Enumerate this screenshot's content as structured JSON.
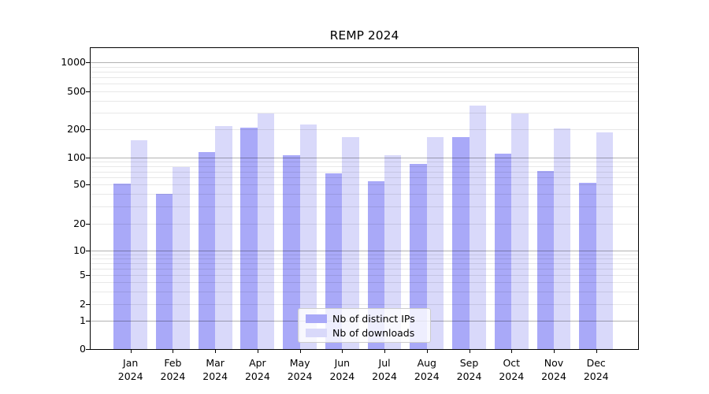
{
  "figure": {
    "title": "REMP 2024"
  },
  "chart_data": {
    "type": "bar",
    "title": "REMP 2024",
    "categories": [
      "Jan 2024",
      "Feb 2024",
      "Mar 2024",
      "Apr 2024",
      "May 2024",
      "Jun 2024",
      "Jul 2024",
      "Aug 2024",
      "Sep 2024",
      "Oct 2024",
      "Nov 2024",
      "Dec 2024"
    ],
    "x_tick_months": [
      "Jan",
      "Feb",
      "Mar",
      "Apr",
      "May",
      "Jun",
      "Jul",
      "Aug",
      "Sep",
      "Oct",
      "Nov",
      "Dec"
    ],
    "x_tick_year": "2024",
    "series": [
      {
        "name": "Nb of distinct IPs",
        "color": "#a9a9f8",
        "values": [
          51,
          40,
          115,
          207,
          105,
          67,
          54,
          85,
          166,
          111,
          71,
          52
        ]
      },
      {
        "name": "Nb of downloads",
        "color": "#d9d9fa",
        "values": [
          154,
          78,
          216,
          292,
          224,
          165,
          106,
          166,
          352,
          294,
          202,
          184
        ]
      }
    ],
    "yscale": "log-with-zero",
    "yticks": [
      0,
      1,
      2,
      5,
      10,
      20,
      50,
      100,
      200,
      500,
      1000
    ],
    "ytick_labels": [
      "0",
      "1",
      "2",
      "5",
      "10",
      "20",
      "50",
      "100",
      "200",
      "500",
      "1000"
    ],
    "ylim": [
      0,
      1400
    ],
    "grid": true,
    "legend": {
      "position": "bottom-center-inside",
      "entries": [
        "Nb of distinct IPs",
        "Nb of downloads"
      ]
    }
  },
  "colors": {
    "major_grid": "rgba(0,0,0,0.30)",
    "minor_grid": "rgba(0,0,0,0.09)",
    "spine": "#000000"
  }
}
